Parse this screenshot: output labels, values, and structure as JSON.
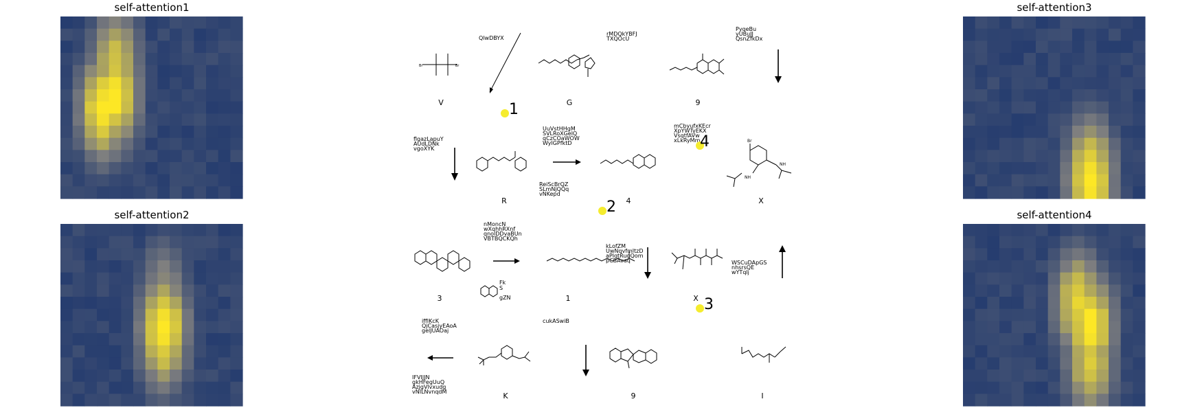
{
  "panels": {
    "p1": {
      "title": "self-attention1"
    },
    "p2": {
      "title": "self-attention2"
    },
    "p3": {
      "title": "self-attention3"
    },
    "p4": {
      "title": "self-attention4"
    }
  },
  "heatmap_colors": {
    "low": "#0d2a6a",
    "mid": "#7f7f7f",
    "high": "#fde725"
  },
  "chart_data": [
    {
      "type": "heatmap",
      "title": "self-attention1",
      "grid": [
        15,
        15
      ],
      "hotspots": [
        {
          "row": 6,
          "col": 4,
          "level": 1.0
        },
        {
          "row": 7,
          "col": 3,
          "level": 1.0
        },
        {
          "row": 3,
          "col": 4,
          "level": 0.8
        }
      ]
    },
    {
      "type": "heatmap",
      "title": "self-attention2",
      "grid": [
        15,
        15
      ],
      "hotspots": [
        {
          "row": 8,
          "col": 8,
          "level": 1.0
        },
        {
          "row": 9,
          "col": 8,
          "level": 0.9
        },
        {
          "row": 5,
          "col": 8,
          "level": 0.6
        }
      ]
    },
    {
      "type": "heatmap",
      "title": "self-attention3",
      "grid": [
        15,
        15
      ],
      "hotspots": [
        {
          "row": 13,
          "col": 10,
          "level": 1.0
        },
        {
          "row": 14,
          "col": 10,
          "level": 0.95
        },
        {
          "row": 12,
          "col": 10,
          "level": 0.9
        }
      ]
    },
    {
      "type": "heatmap",
      "title": "self-attention4",
      "grid": [
        15,
        15
      ],
      "hotspots": [
        {
          "row": 6,
          "col": 9,
          "level": 0.9
        },
        {
          "row": 8,
          "col": 10,
          "level": 1.0
        },
        {
          "row": 11,
          "col": 10,
          "level": 0.85
        }
      ]
    }
  ],
  "center": {
    "markers": [
      "1",
      "2",
      "3",
      "4"
    ],
    "texts": {
      "qlwdbyx": "QlwDBYX",
      "rmdq1": "rMDQkYBFJ",
      "rmdq2": "TXQOcU",
      "pyqe1": "PyqeBu",
      "pyqe2": "yUBuJJ",
      "pyqe3": "QsnZfkDx",
      "fig1": "flgazLapuY",
      "fig2": "AUdLDNk",
      "fig3": "vgoXYK",
      "uuv1": "UuVstHHgM",
      "uuv2": "SVLRoXGelQ",
      "uuv3": "qCzCOaWOW",
      "uuv4": "WylGPfktD",
      "rei1": "ReiScBrQZ",
      "rei2": "SLmNjQQq",
      "rei3": "vNKepd",
      "mcb1": "mCbyufxKEcr",
      "mcb2": "XpYWTyEKX",
      "mcb3": "VsqtfAVw",
      "mcb4": "xLkRyMm",
      "nmo1": "nMoncN",
      "nmo2": "wXqhhRXnf",
      "nmo3": "qnolDDvaBUn",
      "nmo4": "VBTBQCKQh",
      "klo1": "kLofZM",
      "klo2": "UwNqvfmltzD",
      "klo3": "aPlqtRuqQom",
      "klo4": "pCBAvaq",
      "wsc1": "WSCuDApGS",
      "wsc2": "nhsrsQE",
      "wsc3": "wYTqlj",
      "iff1": "iffIKcK",
      "iff2": "QjCasjyEAoA",
      "iff3": "gelJUAOaj",
      "cuk": "cukASwiB",
      "ifv1": "IFVIJJN",
      "ifv2": "gkHFegUuQ",
      "ifv3": "AzjgVlvxudg",
      "ifv4": "vNILNvnqdM",
      "ov1": "Fk",
      "ov2": "S",
      "ov3": "gZN"
    },
    "labels": {
      "r1c1": "V",
      "r1c2": "G",
      "r1c3": "9",
      "r2c1": "R",
      "r2c2": "4",
      "r2c3": "X",
      "r3c1": "3",
      "r3c2": "1",
      "r3c3": "X",
      "r4c1": "K",
      "r4c2": "9",
      "r4c3": "I"
    }
  }
}
